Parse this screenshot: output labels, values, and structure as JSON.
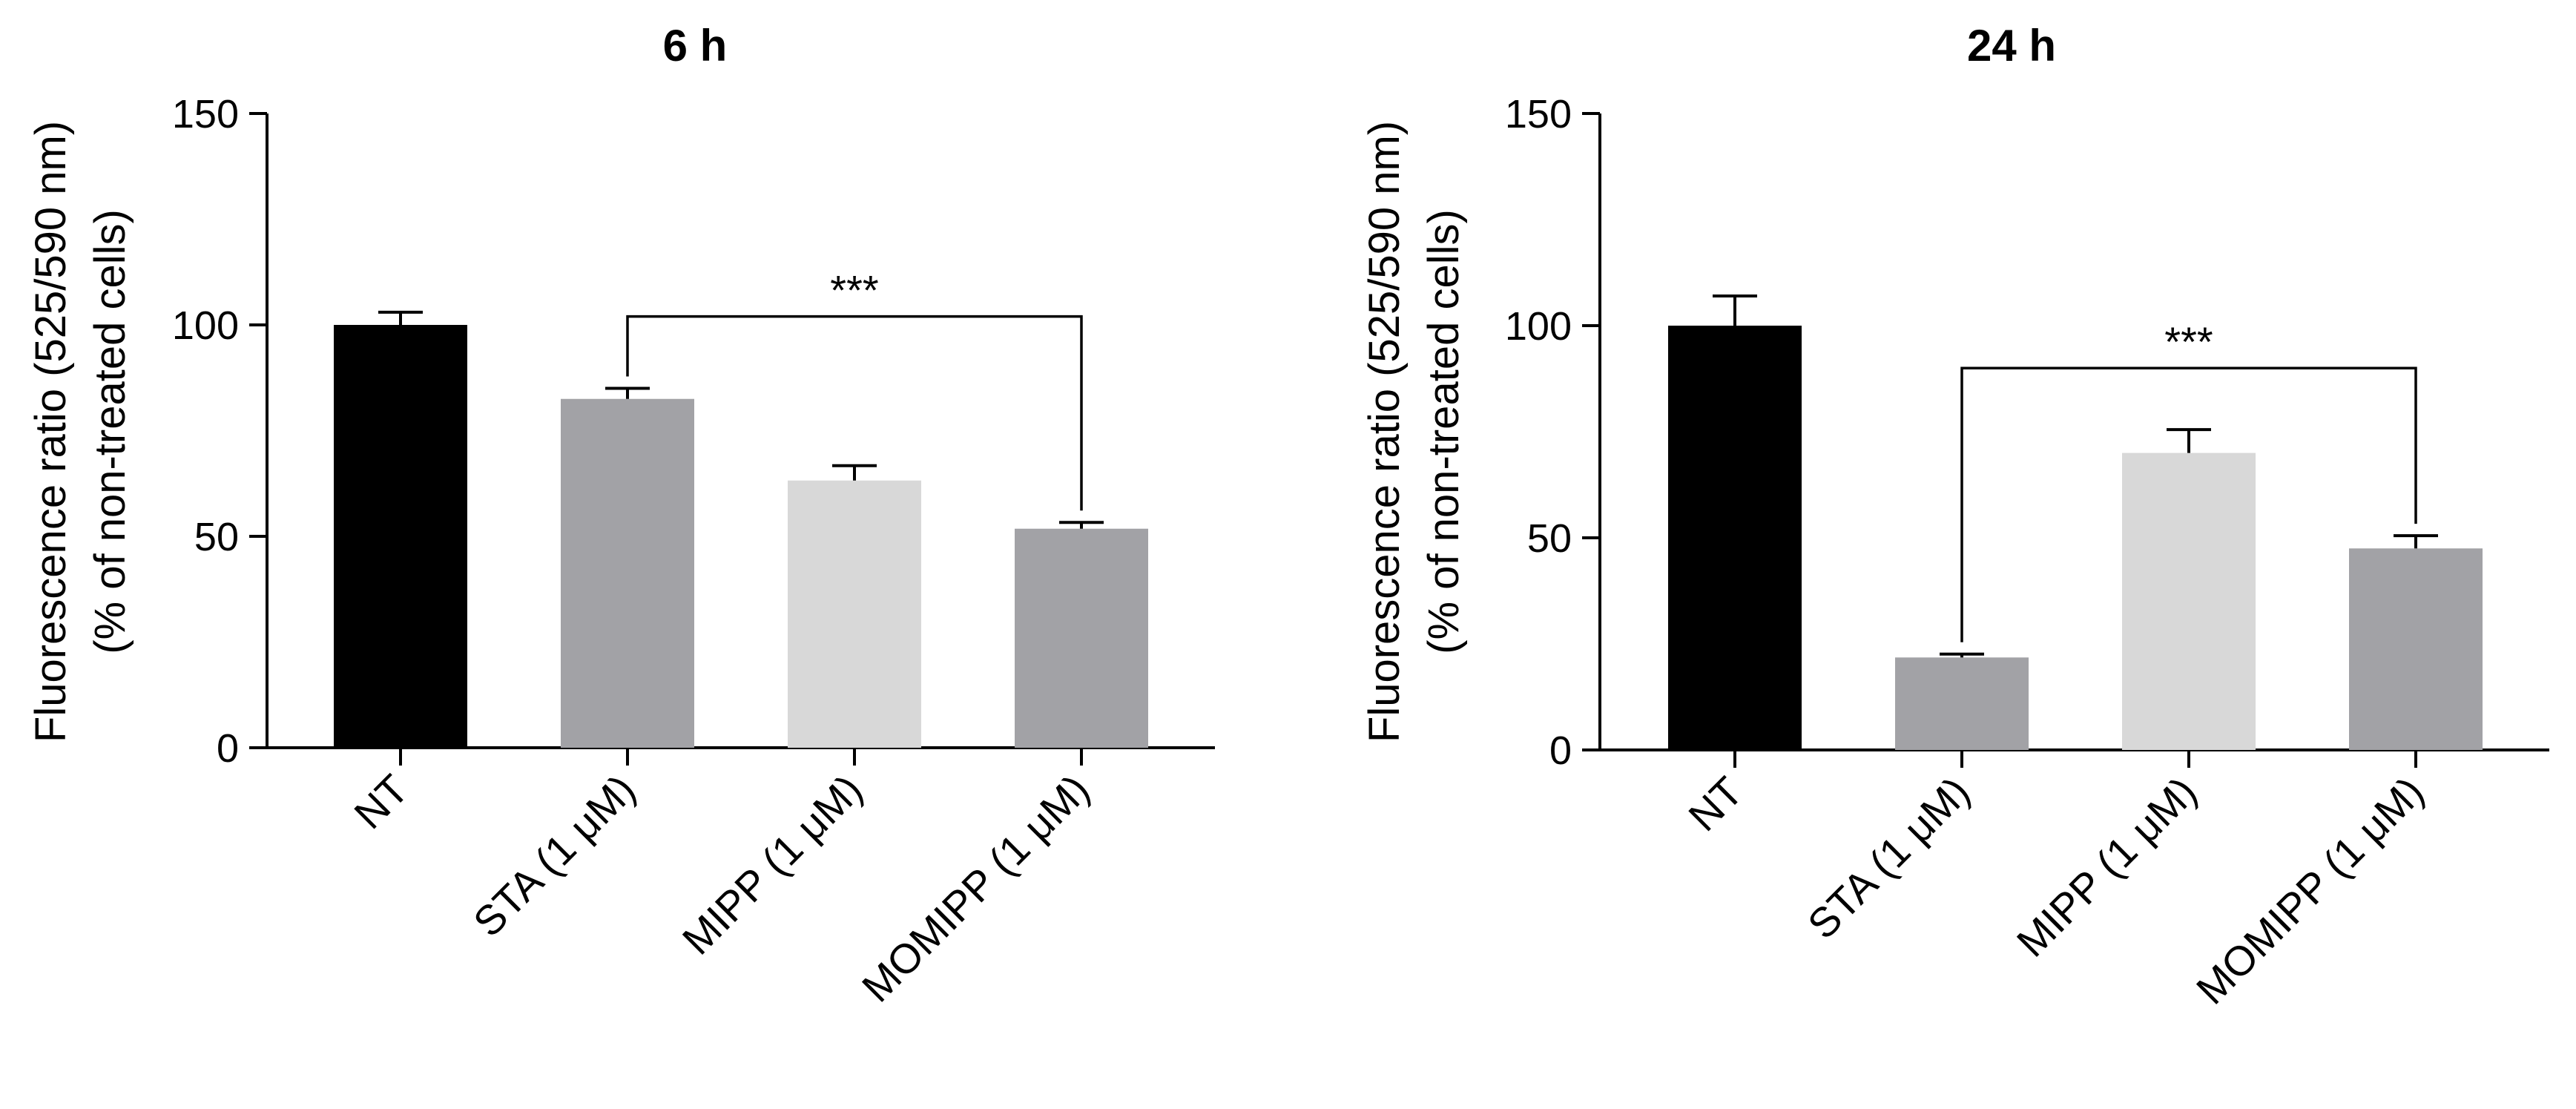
{
  "chart_data": [
    {
      "type": "bar",
      "title": "6 h",
      "ylabel_lines": [
        "Fluorescence ratio (525/590 nm)",
        "(% of non-treated cells)"
      ],
      "xlabel": "",
      "categories": [
        "NT",
        "STA (1 μM)",
        "MIPP (1 μM)",
        "MOMIPP (1 μM)"
      ],
      "values": [
        100,
        82.5,
        63.2,
        51.8
      ],
      "errors": [
        3,
        2.5,
        3.5,
        1.5
      ],
      "colors": [
        "#000000",
        "#a2a2a6",
        "#d8d8d8",
        "#a2a2a6"
      ],
      "ylim": [
        0,
        150
      ],
      "yticks": [
        "0",
        "50",
        "100",
        "150"
      ],
      "significance": {
        "from": 1,
        "to": 3,
        "bracket_y": 102,
        "label": "***"
      }
    },
    {
      "type": "bar",
      "title": "24 h",
      "ylabel_lines": [
        "Fluorescence ratio (525/590 nm)",
        "(% of non-treated cells)"
      ],
      "xlabel": "",
      "categories": [
        "NT",
        "STA (1 μM)",
        "MIPP (1 μM)",
        "MOMIPP (1 μM)"
      ],
      "values": [
        100,
        21.8,
        70,
        47.5
      ],
      "errors": [
        7,
        0.8,
        5.5,
        3
      ],
      "colors": [
        "#000000",
        "#a2a2a6",
        "#d8d8d8",
        "#a2a2a6"
      ],
      "ylim": [
        0,
        150
      ],
      "yticks": [
        "0",
        "50",
        "100",
        "150"
      ],
      "significance": {
        "from": 1,
        "to": 3,
        "bracket_y": 90,
        "label": "***"
      }
    }
  ]
}
